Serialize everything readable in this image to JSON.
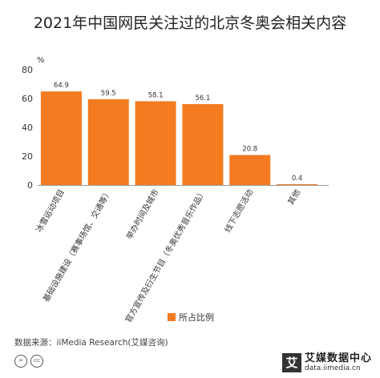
{
  "page": {
    "title": "2021年中国网民关注过的北京冬奥会相关内容"
  },
  "chart_data": {
    "type": "bar",
    "title": "2021年中国网民关注过的北京冬奥会相关内容",
    "ylabel": "%",
    "ylim": [
      0,
      80
    ],
    "yticks": [
      0,
      20,
      40,
      60,
      80
    ],
    "categories": [
      "冰雪运动项目",
      "基础设施建设（赛事场馆、交通等）",
      "举办时间及城市",
      "官方宣传及衍生节目（冬奥优秀音乐作品）",
      "线下志愿活动",
      "其他"
    ],
    "series": [
      {
        "name": "所占比例",
        "values": [
          64.9,
          59.5,
          58.1,
          56.1,
          20.8,
          0.4
        ]
      }
    ],
    "data_labels": [
      "64.9",
      "59.5",
      "58.1",
      "56.1",
      "20.8",
      "0.4"
    ],
    "legend": {
      "position": "bottom-center",
      "label": "所占比例"
    },
    "grid": false,
    "colors": {
      "bar": "#F47B20",
      "axis": "#999999",
      "text": "#333333"
    }
  },
  "footer": {
    "source": "数据来源：iiMedia Research(艾媒咨询)",
    "license_icons": [
      "=",
      "cc"
    ],
    "brand": {
      "badge": "艾",
      "name": "艾媒数据中心",
      "url": "data.iimedia.cn"
    }
  }
}
